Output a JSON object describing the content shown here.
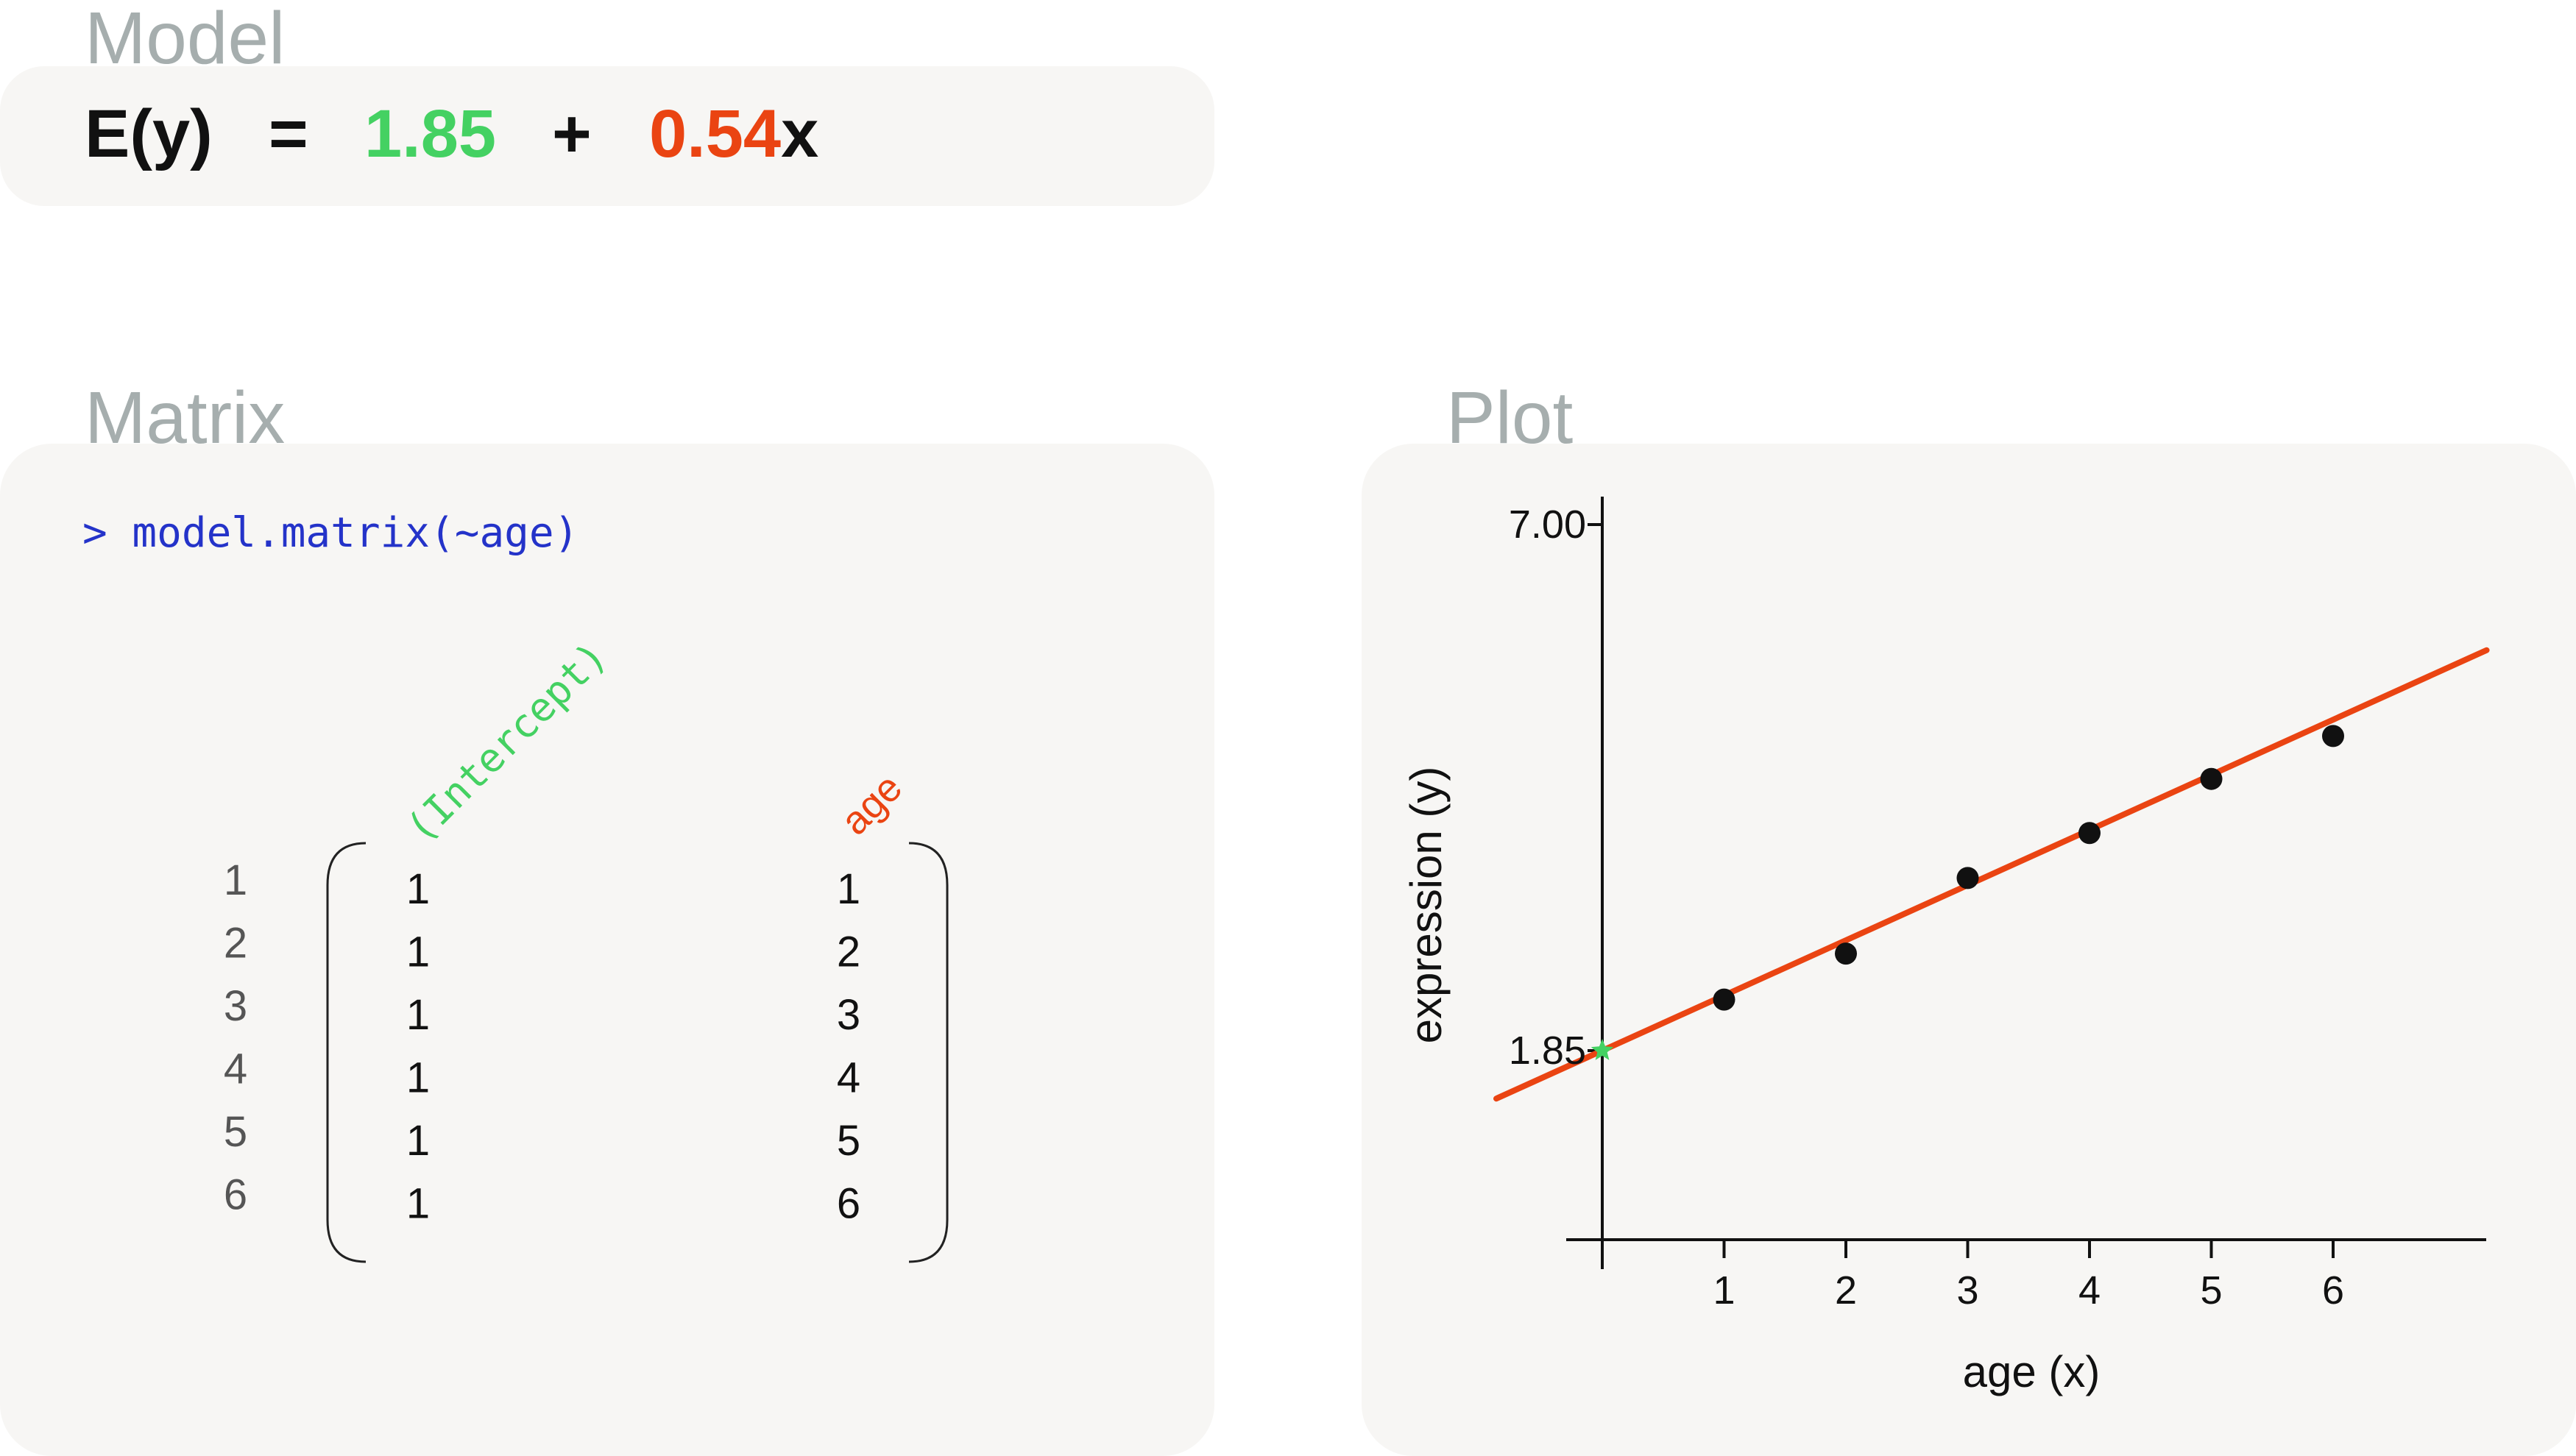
{
  "model": {
    "title": "Model",
    "lhs": "E(y)",
    "equals": "=",
    "intercept": "1.85",
    "plus": "+",
    "slope": "0.54",
    "variable": "x",
    "colors": {
      "intercept": "#44d162",
      "slope": "#ea4412",
      "text": "#111111"
    }
  },
  "matrix": {
    "title": "Matrix",
    "command": "> model.matrix(~age)",
    "command_color": "#2433c9",
    "col_headers": [
      "(Intercept)",
      "age"
    ],
    "row_labels": [
      "1",
      "2",
      "3",
      "4",
      "5",
      "6"
    ],
    "intercept_col": [
      "1",
      "1",
      "1",
      "1",
      "1",
      "1"
    ],
    "age_col": [
      "1",
      "2",
      "3",
      "4",
      "5",
      "6"
    ]
  },
  "plot": {
    "title": "Plot",
    "chart_data": {
      "type": "scatter",
      "x": [
        1,
        2,
        3,
        4,
        5,
        6
      ],
      "y": [
        2.35,
        2.8,
        3.54,
        3.98,
        4.51,
        4.93
      ],
      "fit_line": {
        "intercept": 1.85,
        "slope": 0.54,
        "color": "#ea4412"
      },
      "intercept_marker": {
        "x": 0,
        "y": 1.85,
        "color": "#44d162"
      },
      "xlabel": "age (x)",
      "ylabel": "expression (y)",
      "x_ticks": [
        "1",
        "2",
        "3",
        "4",
        "5",
        "6"
      ],
      "y_ticks": [
        "1.85",
        "7.00"
      ],
      "xlim": [
        -0.9,
        7.3
      ],
      "ylim": [
        -0.2,
        7.0
      ],
      "grid": false
    }
  }
}
